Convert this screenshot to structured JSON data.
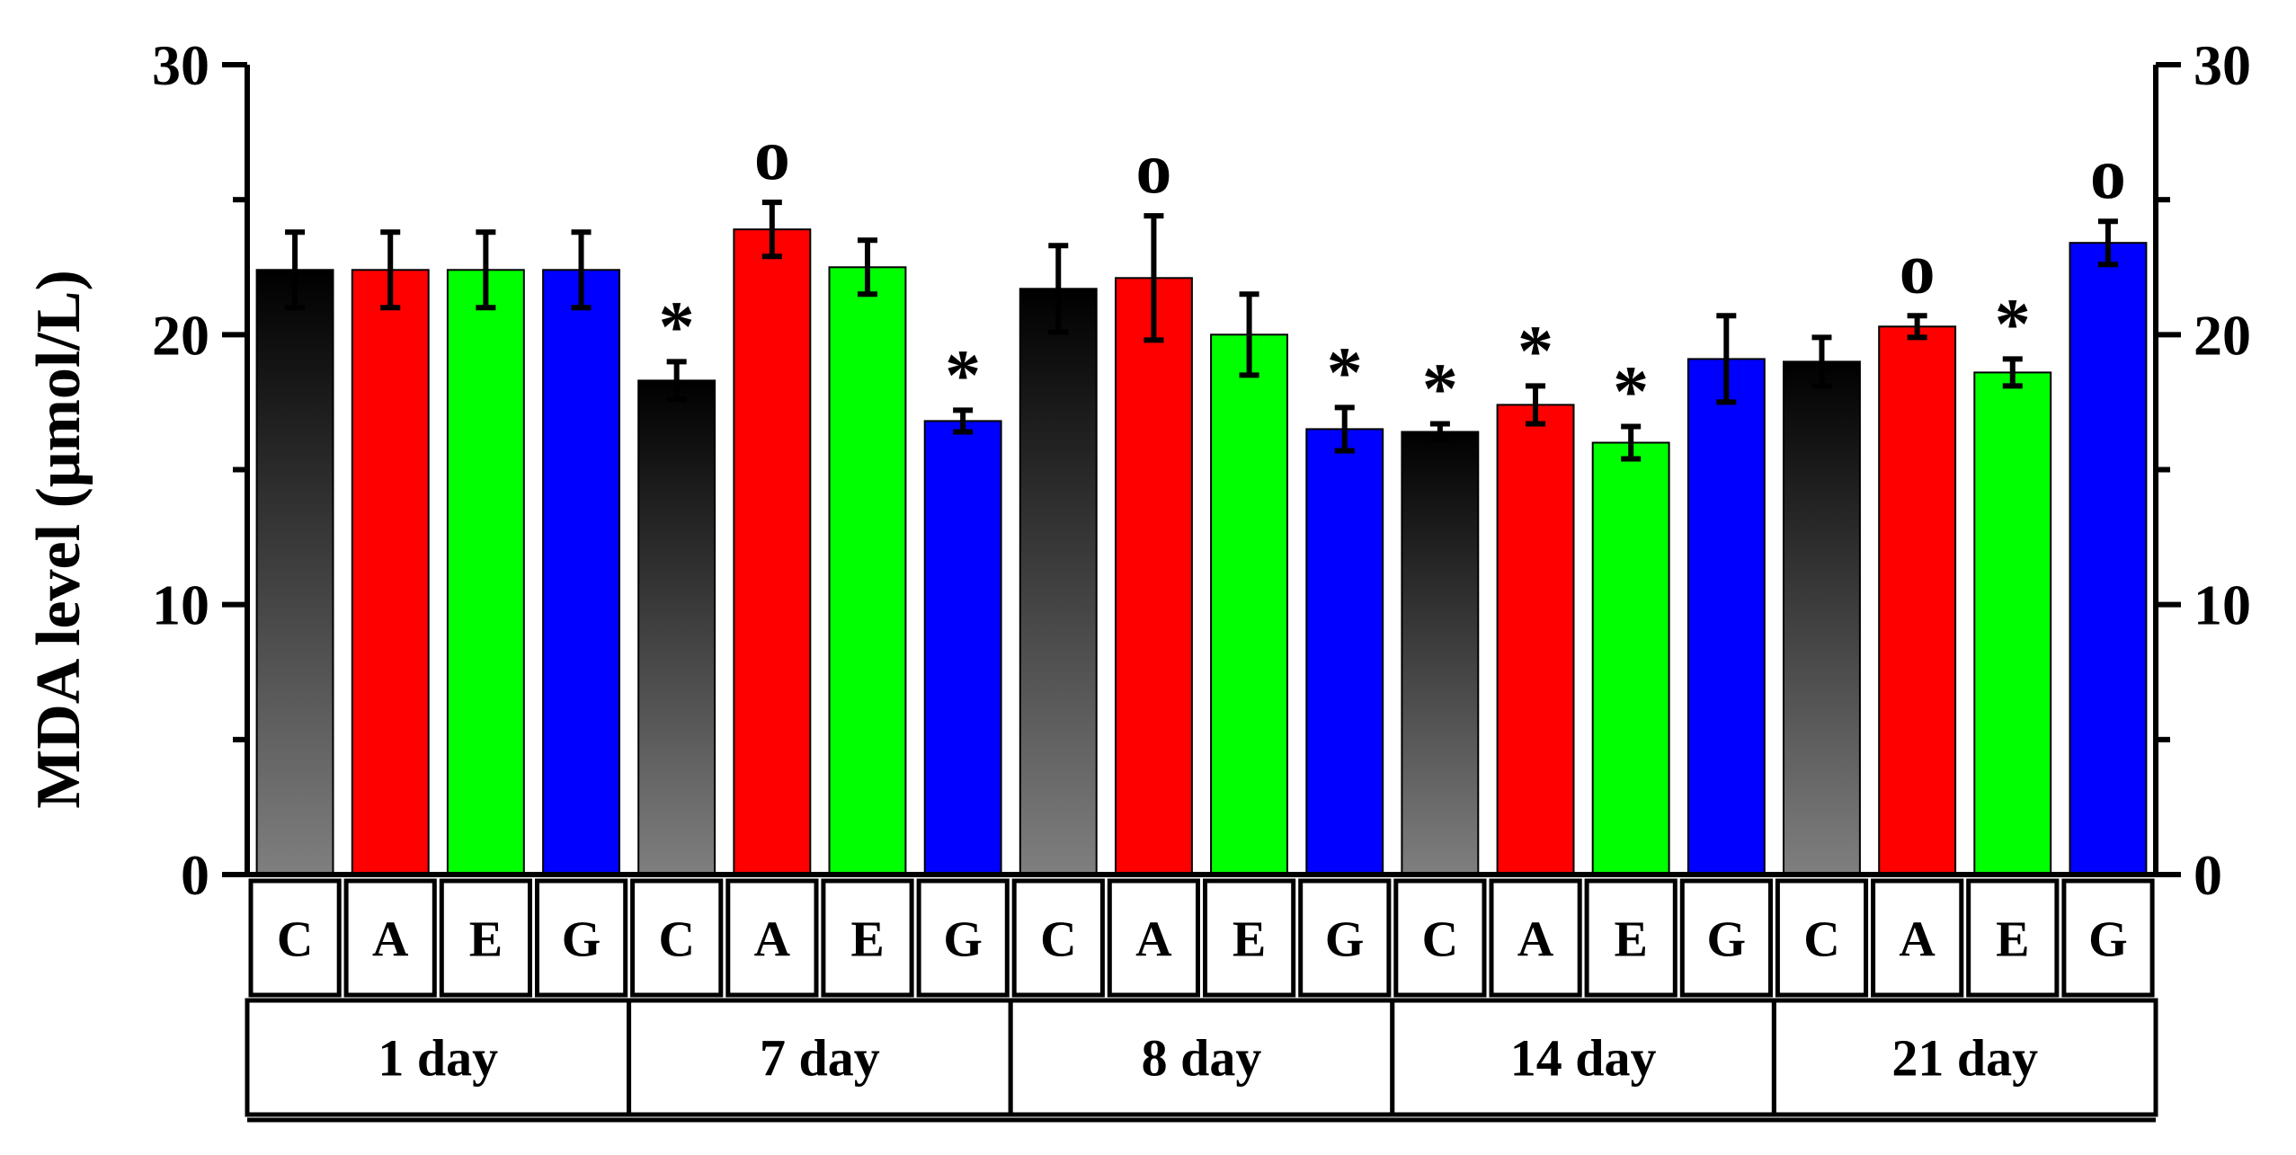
{
  "chart_data": {
    "type": "bar",
    "title": "",
    "ylabel": "MDA level (μmol/L)",
    "xlabel": "",
    "ylim": [
      0,
      30
    ],
    "yticks": [
      0,
      10,
      20,
      30
    ],
    "ytick_labels": [
      "0",
      "10",
      "20",
      "30"
    ],
    "colors": {
      "C": "#000000",
      "A": "#ff0000",
      "E": "#00ff00",
      "G": "#0000ff"
    },
    "groups": [
      {
        "label": "1 day",
        "bars": [
          {
            "category": "C",
            "value": 22.4,
            "error": 1.4,
            "marker": ""
          },
          {
            "category": "A",
            "value": 22.4,
            "error": 1.4,
            "marker": ""
          },
          {
            "category": "E",
            "value": 22.4,
            "error": 1.4,
            "marker": ""
          },
          {
            "category": "G",
            "value": 22.4,
            "error": 1.4,
            "marker": ""
          }
        ]
      },
      {
        "label": "7 day",
        "bars": [
          {
            "category": "C",
            "value": 18.3,
            "error": 0.7,
            "marker": "*"
          },
          {
            "category": "A",
            "value": 23.9,
            "error": 1.0,
            "marker": "o"
          },
          {
            "category": "E",
            "value": 22.5,
            "error": 1.0,
            "marker": ""
          },
          {
            "category": "G",
            "value": 16.8,
            "error": 0.4,
            "marker": "*"
          }
        ]
      },
      {
        "label": "8 day",
        "bars": [
          {
            "category": "C",
            "value": 21.7,
            "error": 1.6,
            "marker": ""
          },
          {
            "category": "A",
            "value": 22.1,
            "error": 2.3,
            "marker": "o"
          },
          {
            "category": "E",
            "value": 20.0,
            "error": 1.5,
            "marker": ""
          },
          {
            "category": "G",
            "value": 16.5,
            "error": 0.8,
            "marker": "*"
          }
        ]
      },
      {
        "label": "14 day",
        "bars": [
          {
            "category": "C",
            "value": 16.4,
            "error": 0.3,
            "marker": "*"
          },
          {
            "category": "A",
            "value": 17.4,
            "error": 0.7,
            "marker": "*"
          },
          {
            "category": "E",
            "value": 16.0,
            "error": 0.6,
            "marker": "*"
          },
          {
            "category": "G",
            "value": 19.1,
            "error": 1.6,
            "marker": ""
          }
        ]
      },
      {
        "label": "21 day",
        "bars": [
          {
            "category": "C",
            "value": 19.0,
            "error": 0.9,
            "marker": ""
          },
          {
            "category": "A",
            "value": 20.3,
            "error": 0.4,
            "marker": "o"
          },
          {
            "category": "E",
            "value": 18.6,
            "error": 0.5,
            "marker": "*"
          },
          {
            "category": "G",
            "value": 23.4,
            "error": 0.8,
            "marker": "o"
          }
        ]
      }
    ]
  }
}
